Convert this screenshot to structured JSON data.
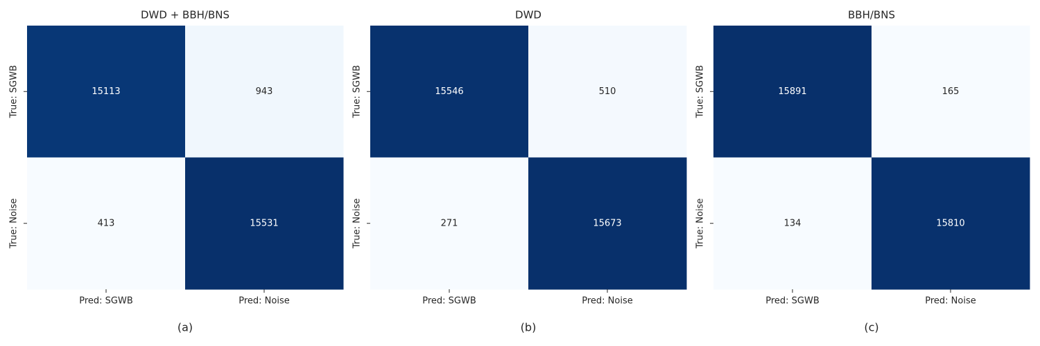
{
  "chart_data": [
    {
      "type": "heatmap",
      "title": "DWD + BBH/BNS",
      "caption": "(a)",
      "x_categories": [
        "Pred: SGWB",
        "Pred: Noise"
      ],
      "y_categories": [
        "True: SGWB",
        "True: Noise"
      ],
      "values": [
        [
          15113,
          943
        ],
        [
          413,
          15531
        ]
      ],
      "cmap": [
        "#f7fbff",
        "#deebf7",
        "#c6dbef",
        "#9ecae1",
        "#6baed6",
        "#4292c6",
        "#2171b5",
        "#08519c",
        "#08306b"
      ]
    },
    {
      "type": "heatmap",
      "title": "DWD",
      "caption": "(b)",
      "x_categories": [
        "Pred: SGWB",
        "Pred: Noise"
      ],
      "y_categories": [
        "True: SGWB",
        "True: Noise"
      ],
      "values": [
        [
          15546,
          510
        ],
        [
          271,
          15673
        ]
      ],
      "cmap": [
        "#f7fbff",
        "#deebf7",
        "#c6dbef",
        "#9ecae1",
        "#6baed6",
        "#4292c6",
        "#2171b5",
        "#08519c",
        "#08306b"
      ]
    },
    {
      "type": "heatmap",
      "title": "BBH/BNS",
      "caption": "(c)",
      "x_categories": [
        "Pred: SGWB",
        "Pred: Noise"
      ],
      "y_categories": [
        "True: SGWB",
        "True: Noise"
      ],
      "values": [
        [
          15891,
          165
        ],
        [
          134,
          15810
        ]
      ],
      "cmap": [
        "#f7fbff",
        "#deebf7",
        "#c6dbef",
        "#9ecae1",
        "#6baed6",
        "#4292c6",
        "#2171b5",
        "#08519c",
        "#08306b"
      ]
    }
  ]
}
